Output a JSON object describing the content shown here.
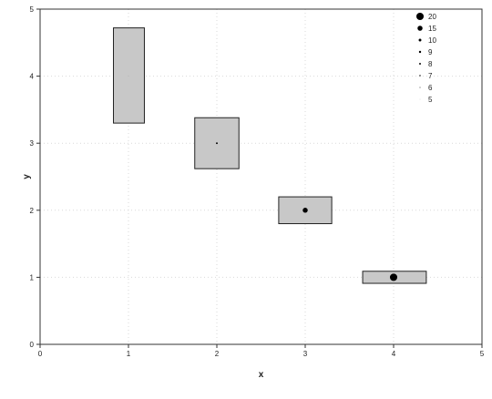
{
  "chart_data": {
    "type": "scatter",
    "title": "",
    "xlabel": "x",
    "ylabel": "y",
    "xlim": [
      0,
      5
    ],
    "ylim": [
      0,
      5
    ],
    "x_ticks": [
      "0",
      "1",
      "2",
      "3",
      "4",
      "5"
    ],
    "y_ticks": [
      "0",
      "1",
      "2",
      "3",
      "4",
      "5"
    ],
    "grid": true,
    "legend_position": "top-right",
    "colors": {
      "box_fill": "#c8c8c8",
      "box_stroke": "#222222",
      "point": "#000000",
      "grid": "#d9d9d9"
    },
    "points": [
      {
        "x": 1,
        "y": 4,
        "size": 5
      },
      {
        "x": 2,
        "y": 3,
        "size": 8
      },
      {
        "x": 3,
        "y": 2,
        "size": 15
      },
      {
        "x": 4,
        "y": 1,
        "size": 20
      }
    ],
    "boxes": [
      {
        "x0": 0.83,
        "x1": 1.18,
        "y0": 3.3,
        "y1": 4.72
      },
      {
        "x0": 1.75,
        "x1": 2.25,
        "y0": 2.62,
        "y1": 3.38
      },
      {
        "x0": 2.7,
        "x1": 3.3,
        "y0": 1.8,
        "y1": 2.2
      },
      {
        "x0": 3.65,
        "x1": 4.37,
        "y0": 0.91,
        "y1": 1.09
      }
    ],
    "legend": [
      {
        "label": "20",
        "size": 20
      },
      {
        "label": "15",
        "size": 15
      },
      {
        "label": "10",
        "size": 10
      },
      {
        "label": "9",
        "size": 9
      },
      {
        "label": "8",
        "size": 8
      },
      {
        "label": "7",
        "size": 7
      },
      {
        "label": "6",
        "size": 6
      },
      {
        "label": "5",
        "size": 5
      }
    ]
  }
}
